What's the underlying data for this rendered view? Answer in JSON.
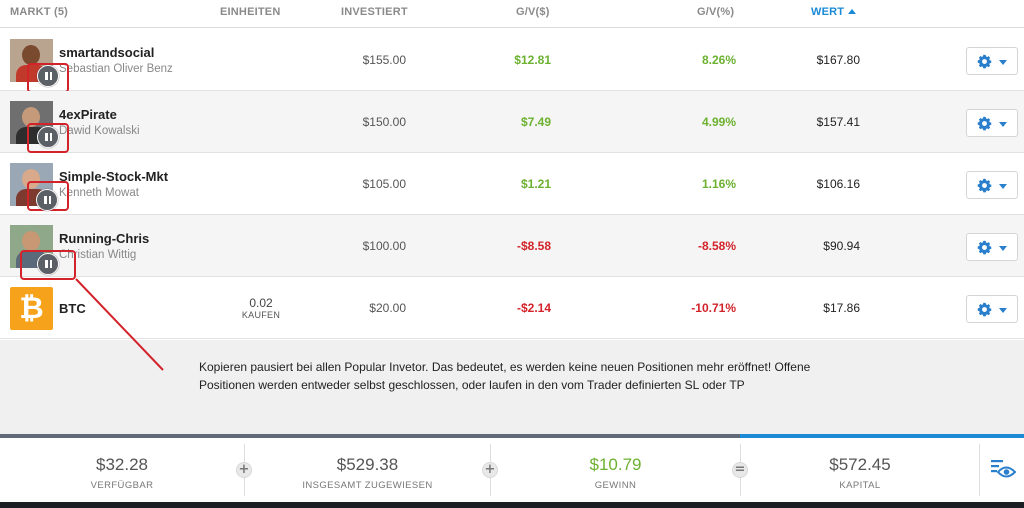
{
  "header": {
    "market": "MARKT (5)",
    "units": "EINHEITEN",
    "invested": "INVESTIERT",
    "pl": "G/V($)",
    "pl_pct": "G/V(%)",
    "value": "WERT"
  },
  "rows": [
    {
      "name": "smartandsocial",
      "subname": "Sebastian Oliver Benz",
      "invested": "$155.00",
      "pl": "$12.81",
      "pl_pct": "8.26%",
      "value": "$167.80",
      "status": "paused"
    },
    {
      "name": "4exPirate",
      "subname": "Dawid Kowalski",
      "invested": "$150.00",
      "pl": "$7.49",
      "pl_pct": "4.99%",
      "value": "$157.41",
      "status": "paused"
    },
    {
      "name": "Simple-Stock-Mkt",
      "subname": "Kenneth Mowat",
      "invested": "$105.00",
      "pl": "$1.21",
      "pl_pct": "1.16%",
      "value": "$106.16",
      "status": "paused"
    },
    {
      "name": "Running-Chris",
      "subname": "Christian Wittig",
      "invested": "$100.00",
      "pl": "-$8.58",
      "pl_pct": "-8.58%",
      "value": "$90.94",
      "status": "paused"
    },
    {
      "name": "BTC",
      "units_value": "0.02",
      "units_label": "KAUFEN",
      "invested": "$20.00",
      "pl": "-$2.14",
      "pl_pct": "-10.71%",
      "value": "$17.86",
      "icon": "bitcoin-icon"
    }
  ],
  "annotation": {
    "line1": "Kopieren pausiert bei allen Popular Invetor. Das bedeutet, es werden keine neuen Positionen mehr eröffnet! Offene",
    "line2": "Positionen werden entweder  selbst geschlossen, oder laufen in den vom Trader definierten SL oder TP"
  },
  "footer": {
    "available": {
      "value": "$32.28",
      "label": "VERFÜGBAR"
    },
    "allocated": {
      "value": "$529.38",
      "label": "INSGESAMT ZUGEWIESEN"
    },
    "profit": {
      "value": "$10.79",
      "label": "GEWINN"
    },
    "equity": {
      "value": "$572.45",
      "label": "KAPITAL"
    },
    "op_plus": "+",
    "op_equals": "="
  },
  "colors": {
    "positive": "#6cb130",
    "negative": "#d2232a",
    "accent": "#1a8ad6",
    "annotation": "#d2232a",
    "bitcoin": "#f7a21b"
  },
  "icons": [
    "pause-icon",
    "gear-icon",
    "chevron-down-icon",
    "bitcoin-icon",
    "eye-icon",
    "plus-icon",
    "equals-icon"
  ]
}
